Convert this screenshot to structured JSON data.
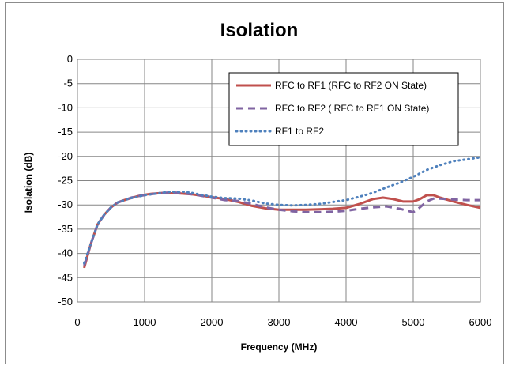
{
  "chart_data": {
    "type": "line",
    "title": "Isolation",
    "xlabel": "Frequency (MHz)",
    "ylabel": "Isolation (dB)",
    "xlim": [
      0,
      6000
    ],
    "ylim": [
      -50,
      0
    ],
    "xticks": [
      0,
      1000,
      2000,
      3000,
      4000,
      5000,
      6000
    ],
    "yticks": [
      0,
      -5,
      -10,
      -15,
      -20,
      -25,
      -30,
      -35,
      -40,
      -45,
      -50
    ],
    "grid": true,
    "legend_position": "top-right",
    "series": [
      {
        "name": "RFC to RF1 (RFC to RF2 ON State)",
        "style": "solid",
        "color": "#c0504d",
        "x": [
          100,
          200,
          300,
          400,
          500,
          600,
          700,
          800,
          900,
          1000,
          1100,
          1200,
          1300,
          1400,
          1500,
          1600,
          1700,
          1800,
          2000,
          2200,
          2400,
          2600,
          2800,
          3000,
          3200,
          3400,
          3600,
          3800,
          4000,
          4200,
          4400,
          4550,
          4700,
          4850,
          5000,
          5100,
          5200,
          5300,
          5400,
          5600,
          5800,
          6000
        ],
        "y": [
          -43,
          -38,
          -34,
          -32,
          -30.5,
          -29.5,
          -29,
          -28.6,
          -28.2,
          -27.9,
          -27.7,
          -27.6,
          -27.5,
          -27.6,
          -27.6,
          -27.7,
          -27.8,
          -28,
          -28.4,
          -28.8,
          -29.4,
          -30.2,
          -30.7,
          -31,
          -31,
          -31,
          -30.9,
          -30.8,
          -30.6,
          -29.8,
          -28.8,
          -28.5,
          -28.8,
          -29.3,
          -29.3,
          -28.8,
          -28,
          -28,
          -28.5,
          -29.3,
          -30,
          -30.6
        ]
      },
      {
        "name": "RFC to RF2 ( RFC to RF1 ON State)",
        "style": "dashed",
        "color": "#8064a2",
        "x": [
          100,
          200,
          300,
          400,
          500,
          600,
          700,
          800,
          900,
          1000,
          1100,
          1200,
          1300,
          1400,
          1500,
          1600,
          1700,
          1800,
          2000,
          2200,
          2400,
          2600,
          2800,
          3000,
          3200,
          3400,
          3600,
          3800,
          4000,
          4200,
          4400,
          4600,
          4800,
          5000,
          5100,
          5200,
          5300,
          5400,
          5600,
          5800,
          6000
        ],
        "y": [
          -42.5,
          -38,
          -34,
          -32,
          -30.5,
          -29.5,
          -29,
          -28.5,
          -28.2,
          -28,
          -27.8,
          -27.6,
          -27.5,
          -27.4,
          -27.5,
          -27.6,
          -27.8,
          -28,
          -28.5,
          -29,
          -29.2,
          -29.8,
          -30.5,
          -31,
          -31.3,
          -31.5,
          -31.5,
          -31.4,
          -31.2,
          -30.8,
          -30.5,
          -30.3,
          -30.8,
          -31.5,
          -30.5,
          -29.3,
          -28.7,
          -28.7,
          -28.9,
          -29,
          -29
        ]
      },
      {
        "name": "RF1 to RF2",
        "style": "dotted",
        "color": "#4f81bd",
        "x": [
          100,
          200,
          300,
          400,
          500,
          600,
          700,
          800,
          900,
          1000,
          1100,
          1200,
          1300,
          1400,
          1500,
          1600,
          1700,
          1800,
          2000,
          2200,
          2400,
          2600,
          2800,
          3000,
          3200,
          3400,
          3600,
          3800,
          4000,
          4200,
          4400,
          4600,
          4800,
          5000,
          5200,
          5400,
          5600,
          5800,
          6000
        ],
        "y": [
          -42,
          -38,
          -34,
          -32,
          -30.5,
          -29.5,
          -29,
          -28.6,
          -28.3,
          -28,
          -27.8,
          -27.6,
          -27.4,
          -27.3,
          -27.3,
          -27.3,
          -27.5,
          -27.8,
          -28.3,
          -28.6,
          -28.7,
          -29.1,
          -29.7,
          -30,
          -30.1,
          -30,
          -29.8,
          -29.4,
          -29,
          -28.3,
          -27.5,
          -26.4,
          -25.4,
          -24.2,
          -22.8,
          -21.8,
          -21,
          -20.6,
          -20.2
        ]
      }
    ]
  }
}
